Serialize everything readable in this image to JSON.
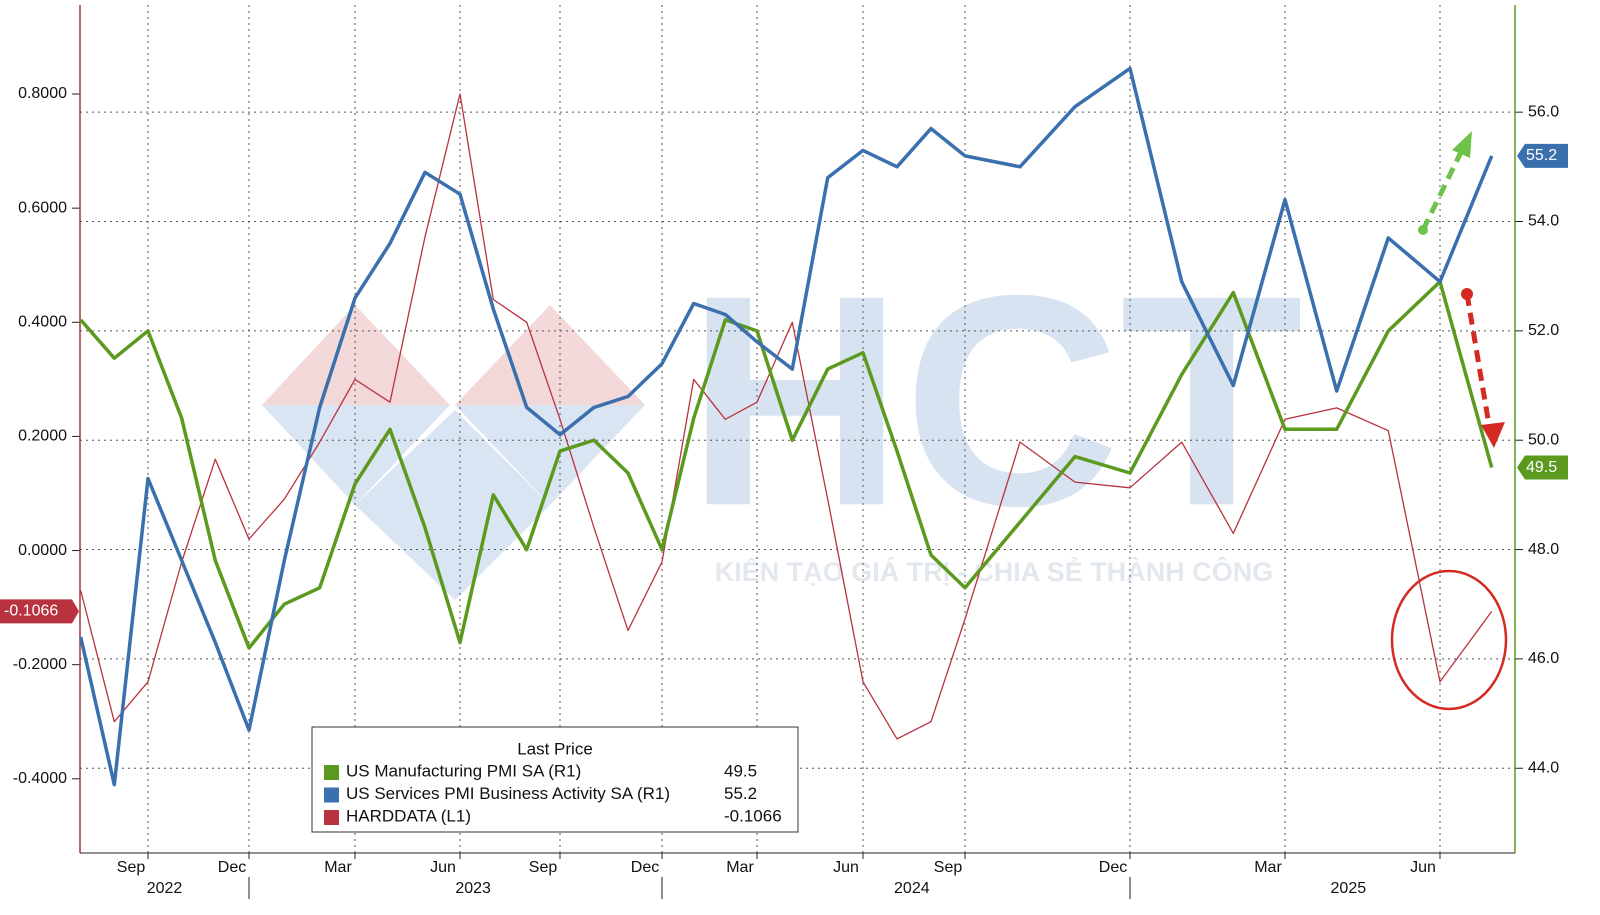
{
  "chart_data": {
    "type": "line",
    "x": [
      "2022-07",
      "2022-08",
      "2022-09",
      "2022-10",
      "2022-11",
      "2022-12",
      "2023-01",
      "2023-02",
      "2023-03",
      "2023-04",
      "2023-05",
      "2023-06",
      "2023-07",
      "2023-08",
      "2023-09",
      "2023-10",
      "2023-11",
      "2023-12",
      "2024-01",
      "2024-02",
      "2024-03",
      "2024-04",
      "2024-05",
      "2024-06",
      "2024-07",
      "2024-08",
      "2024-09",
      "2024-10",
      "2024-11",
      "2024-12",
      "2025-01",
      "2025-02",
      "2025-03",
      "2025-04",
      "2025-05",
      "2025-06",
      "2025-07"
    ],
    "series": [
      {
        "name": "US Manufacturing PMI SA  (R1)",
        "color": "#5b9a1f",
        "axis": "y2",
        "values": [
          52.2,
          51.5,
          52.0,
          50.4,
          47.8,
          46.2,
          47.0,
          47.3,
          49.2,
          50.2,
          48.4,
          46.3,
          49.0,
          48.0,
          49.8,
          50.0,
          49.4,
          48.0,
          50.4,
          52.2,
          52.0,
          50.0,
          51.3,
          51.6,
          49.8,
          47.9,
          47.3,
          48.5,
          49.7,
          49.4,
          51.2,
          52.7,
          50.2,
          50.2,
          52.0,
          52.9,
          49.5
        ]
      },
      {
        "name": "US Services PMI Business Activity SA  (R1)",
        "color": "#3a70ad",
        "axis": "y2",
        "values": [
          46.4,
          43.7,
          49.3,
          47.8,
          46.3,
          44.7,
          47.8,
          50.6,
          52.6,
          53.6,
          54.9,
          54.5,
          52.4,
          50.6,
          50.1,
          50.6,
          50.8,
          51.4,
          52.5,
          52.3,
          51.8,
          51.3,
          54.8,
          55.3,
          55.0,
          55.7,
          55.2,
          55.0,
          56.1,
          56.8,
          52.9,
          51.0,
          54.4,
          50.9,
          53.7,
          52.9,
          55.2
        ]
      },
      {
        "name": "HARDDATA  (L1)",
        "color": "#b8323f",
        "axis": "y",
        "values": [
          -0.07,
          -0.3,
          -0.23,
          -0.02,
          0.16,
          0.02,
          0.09,
          0.19,
          0.3,
          0.26,
          0.55,
          0.8,
          0.44,
          0.4,
          0.23,
          0.04,
          -0.14,
          -0.02,
          0.3,
          0.23,
          0.26,
          0.4,
          0.09,
          -0.23,
          -0.33,
          -0.3,
          -0.12,
          0.19,
          0.12,
          0.11,
          0.19,
          0.03,
          0.23,
          0.25,
          0.21,
          -0.23,
          -0.1066
        ]
      }
    ],
    "legend_title": "Last Price",
    "ylim": [
      -0.53,
      0.956
    ],
    "yticks": [
      {
        "value": -0.4,
        "label": "-0.4000"
      },
      {
        "value": -0.2,
        "label": "-0.2000"
      },
      {
        "value": 0,
        "label": "0.0000"
      },
      {
        "value": 0.2,
        "label": "0.2000"
      },
      {
        "value": 0.4,
        "label": "0.4000"
      },
      {
        "value": 0.6,
        "label": "0.6000"
      },
      {
        "value": 0.8,
        "label": "0.8000"
      }
    ],
    "y2lim": [
      42.45,
      57.96
    ],
    "y2ticks": [
      {
        "value": 44,
        "label": "44.0"
      },
      {
        "value": 46,
        "label": "46.0"
      },
      {
        "value": 48,
        "label": "48.0"
      },
      {
        "value": 50,
        "label": "50.0"
      },
      {
        "value": 52,
        "label": "52.0"
      },
      {
        "value": 54,
        "label": "54.0"
      },
      {
        "value": 56,
        "label": "56.0"
      }
    ],
    "xticks": [
      {
        "value": "2022-09",
        "label": "Sep"
      },
      {
        "value": "2022-12",
        "label": "Dec"
      },
      {
        "value": "2023-03",
        "label": "Mar"
      },
      {
        "value": "2023-06",
        "label": "Jun"
      },
      {
        "value": "2023-09",
        "label": "Sep"
      },
      {
        "value": "2023-12",
        "label": "Dec"
      },
      {
        "value": "2024-03",
        "label": "Mar"
      },
      {
        "value": "2024-06",
        "label": "Jun"
      },
      {
        "value": "2024-09",
        "label": "Sep"
      },
      {
        "value": "2024-12",
        "label": "Dec"
      },
      {
        "value": "2025-03",
        "label": "Mar"
      },
      {
        "value": "2025-06",
        "label": "Jun"
      }
    ],
    "years": [
      "2022",
      "2023",
      "2024",
      "2025"
    ],
    "grid": true,
    "watermark": {
      "logo": "HCT",
      "slogan": "KIẾN TẠO GIÁ TRỊ - CHIA SẺ THÀNH CÔNG"
    }
  }
}
